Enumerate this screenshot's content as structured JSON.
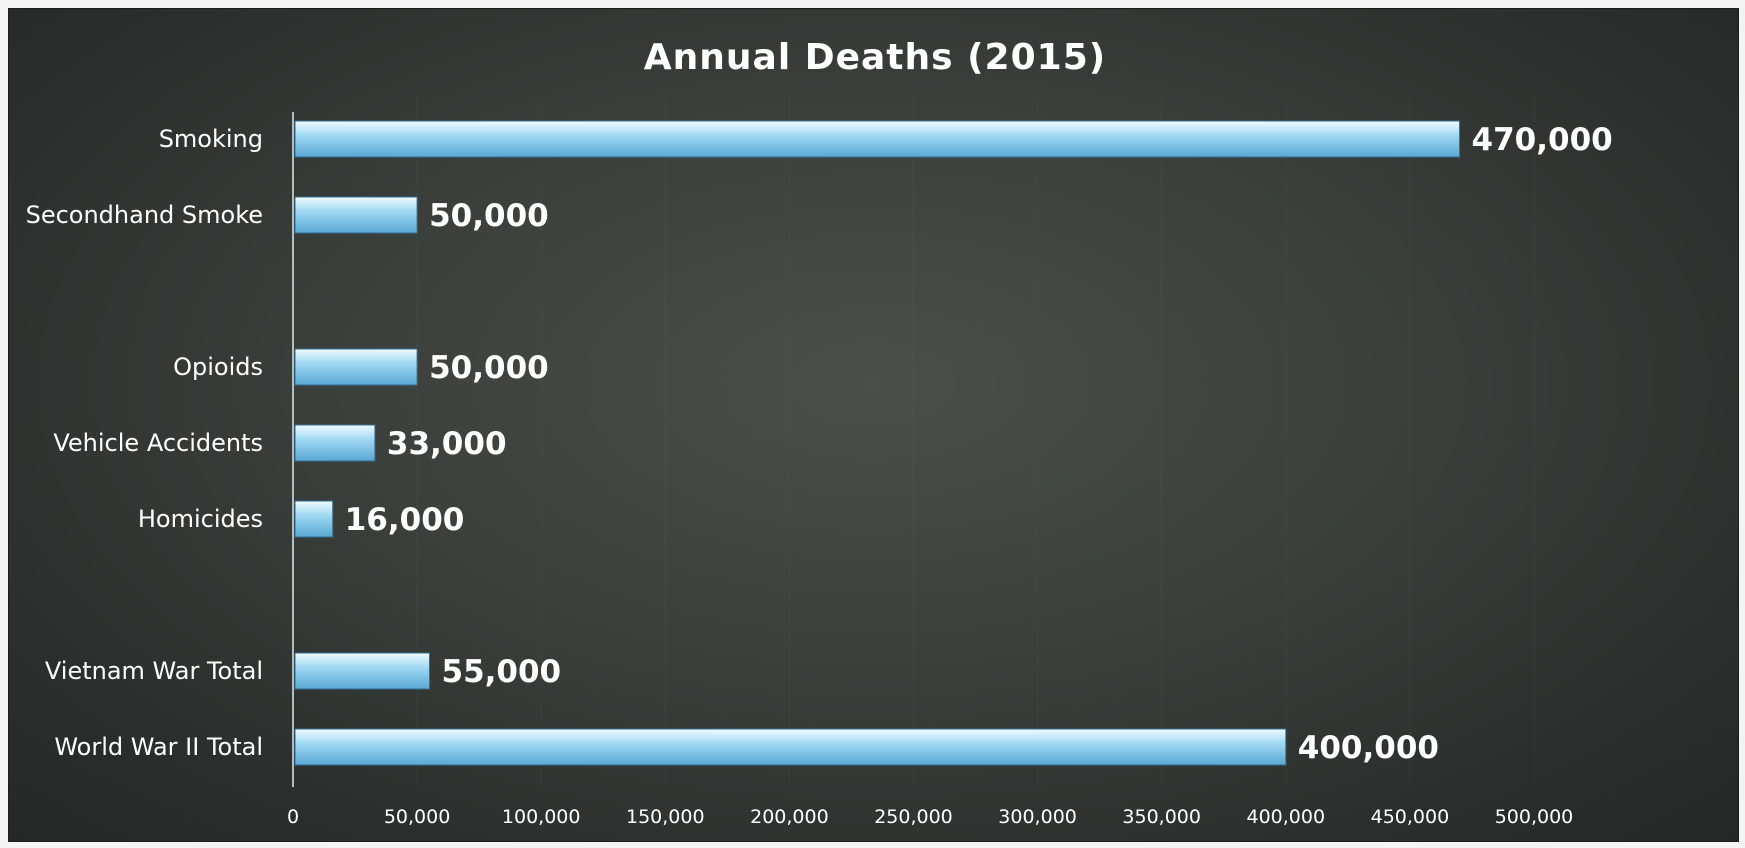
{
  "chart_data": {
    "type": "bar",
    "orientation": "horizontal",
    "title": "Annual Deaths (2015)",
    "categories": [
      "Smoking",
      "Secondhand Smoke",
      "",
      "Opioids",
      "Vehicle Accidents",
      "Homicides",
      "",
      "Vietnam War Total",
      "World War II Total"
    ],
    "values": [
      470000,
      50000,
      null,
      50000,
      33000,
      16000,
      null,
      55000,
      400000
    ],
    "data_labels": [
      "470,000",
      "50,000",
      "",
      "50,000",
      "33,000",
      "16,000",
      "",
      "55,000",
      "400,000"
    ],
    "xlim": [
      0,
      500000
    ],
    "x_ticks": [
      0,
      50000,
      100000,
      150000,
      200000,
      250000,
      300000,
      350000,
      400000,
      450000,
      500000
    ],
    "x_tick_labels": [
      "0",
      "50,000",
      "100,000",
      "150,000",
      "200,000",
      "250,000",
      "300,000",
      "350,000",
      "400,000",
      "450,000",
      "500,000"
    ],
    "xlabel": "",
    "ylabel": "",
    "grid": "vertical",
    "legend": "none",
    "colors": {
      "bar_light": "#f2fbff",
      "bar_mid": "#9fd8f2",
      "bar_dark": "#5aa8d4",
      "background": "#3a3f3c",
      "text": "#ffffff"
    }
  }
}
